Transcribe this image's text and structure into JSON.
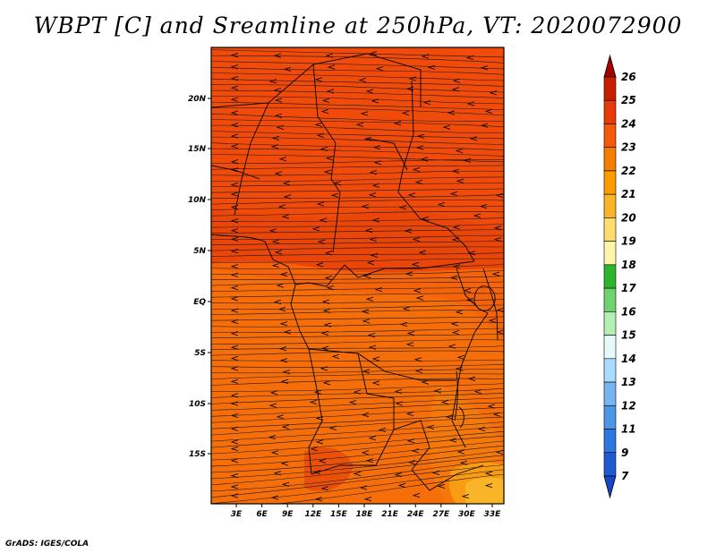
{
  "title": "WBPT [C] and Sreamline at 250hPa, VT: 2020072900",
  "footer": "GrADS: IGES/COLA",
  "map": {
    "lat_labels": [
      "20N",
      "15N",
      "10N",
      "5N",
      "EQ",
      "5S",
      "10S",
      "15S"
    ],
    "lon_labels": [
      "3E",
      "6E",
      "9E",
      "12E",
      "15E",
      "18E",
      "21E",
      "24E",
      "27E",
      "30E",
      "33E"
    ]
  },
  "colorbar": {
    "labels": [
      "26",
      "25",
      "24",
      "23",
      "22",
      "21",
      "20",
      "19",
      "18",
      "17",
      "16",
      "15",
      "14",
      "13",
      "12",
      "11",
      "9",
      "7"
    ],
    "colors": [
      "#a50000",
      "#c81e00",
      "#e63c0a",
      "#f55a0a",
      "#f57d00",
      "#fa9b00",
      "#fab428",
      "#ffdc6e",
      "#fff5aa",
      "#2db42d",
      "#6ed26e",
      "#b4f0b4",
      "#e6fafa",
      "#aadcff",
      "#78b4f0",
      "#4b96e6",
      "#2d78dc",
      "#1e5ad2",
      "#1946c8"
    ]
  },
  "colors": {
    "field_main": "#f5640a",
    "field_north": "#f04b0a",
    "field_warm": "#f5780a",
    "field_hot": "#fa9b14"
  }
}
